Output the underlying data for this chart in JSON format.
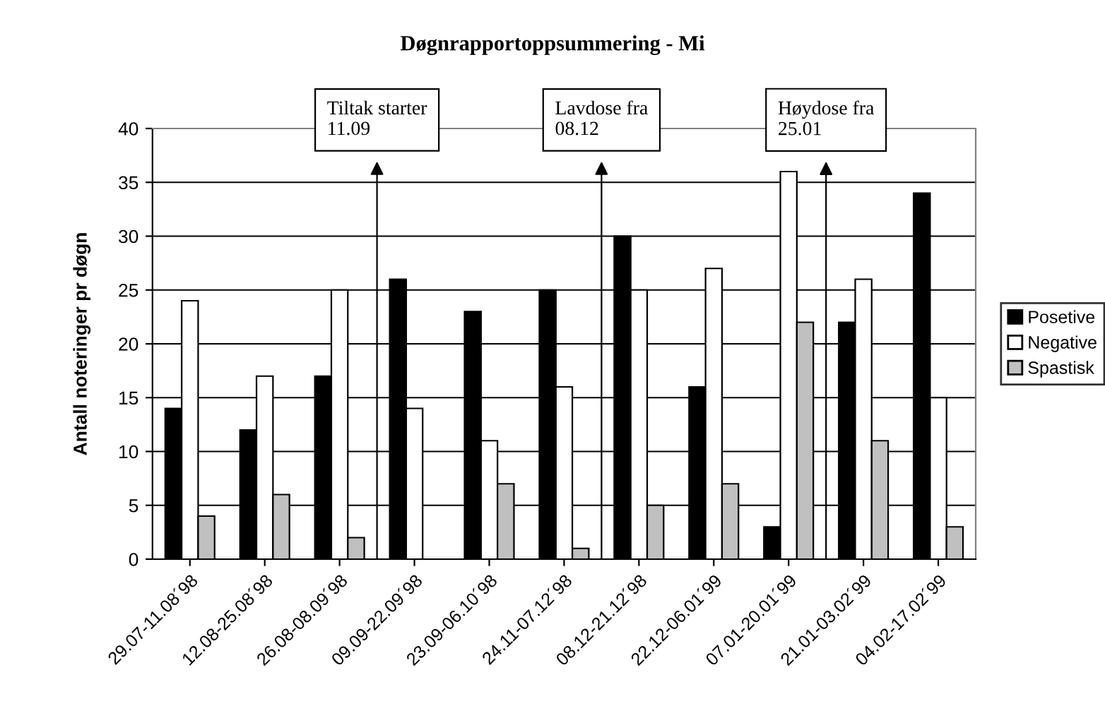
{
  "chart_data": {
    "type": "bar",
    "title": "Døgnrapportoppsummering - Mi",
    "ylabel": "Antall noteringer pr døgn",
    "categories": [
      "29.07-11.08´98",
      "12.08-25.08´98",
      "26.08-08.09´98",
      "09.09-22.09´98",
      "23.09-06.10´98",
      "24.11-07.12´98",
      "08.12-21.12´98",
      "22.12-06.01´99",
      "07.01-20.01´99",
      "21.01-03.02´99",
      "04.02-17.02´99"
    ],
    "series": [
      {
        "name": "Posetive",
        "color": "#000000",
        "values": [
          14,
          12,
          17,
          26,
          23,
          25,
          30,
          16,
          3,
          22,
          34
        ]
      },
      {
        "name": "Negative",
        "color": "#ffffff",
        "values": [
          24,
          17,
          25,
          14,
          11,
          16,
          25,
          27,
          36,
          26,
          15
        ]
      },
      {
        "name": "Spastisk",
        "color": "#c0c0c0",
        "values": [
          4,
          6,
          2,
          null,
          7,
          1,
          5,
          7,
          22,
          11,
          3
        ]
      }
    ],
    "ylim": [
      0,
      40
    ],
    "yticks": [
      0,
      5,
      10,
      15,
      20,
      25,
      30,
      35,
      40
    ],
    "grid": "y",
    "legend": "right",
    "annotations": [
      "Tiltak starter\n11.09",
      "Lavdose fra\n08.12",
      "Høydose fra\n25.01"
    ]
  }
}
